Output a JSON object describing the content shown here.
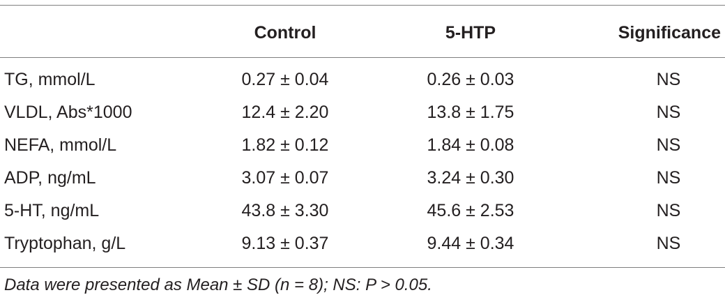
{
  "table": {
    "headers": [
      "",
      "Control",
      "5-HTP",
      "Significance"
    ],
    "rows": [
      {
        "label": "TG, mmol/L",
        "control": "0.27 ± 0.04",
        "htp": "0.26 ± 0.03",
        "significance": "NS"
      },
      {
        "label": "VLDL, Abs*1000",
        "control": "12.4 ± 2.20",
        "htp": "13.8 ± 1.75",
        "significance": "NS"
      },
      {
        "label": "NEFA, mmol/L",
        "control": "1.82 ± 0.12",
        "htp": "1.84 ± 0.08",
        "significance": "NS"
      },
      {
        "label": "ADP, ng/mL",
        "control": "3.07 ± 0.07",
        "htp": "3.24 ± 0.30",
        "significance": "NS"
      },
      {
        "label": "5-HT, ng/mL",
        "control": "43.8 ± 3.30",
        "htp": "45.6 ± 2.53",
        "significance": "NS"
      },
      {
        "label": "Tryptophan, g/L",
        "control": "9.13 ± 0.37",
        "htp": "9.44 ± 0.34",
        "significance": "NS"
      }
    ]
  },
  "footnote": "Data were presented as Mean ± SD (n = 8); NS: P > 0.05."
}
